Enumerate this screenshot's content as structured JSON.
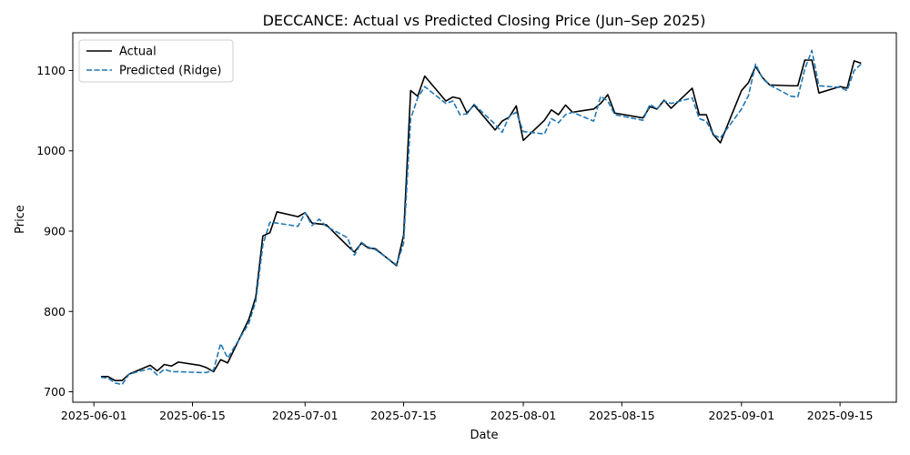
{
  "chart_data": {
    "type": "line",
    "title": "DECCANCE: Actual vs Predicted Closing Price (Jun–Sep 2025)",
    "xlabel": "Date",
    "ylabel": "Price",
    "x_ticks": [
      "2025-06-01",
      "2025-06-15",
      "2025-07-01",
      "2025-07-15",
      "2025-08-01",
      "2025-08-15",
      "2025-09-01",
      "2025-09-15"
    ],
    "y_ticks": [
      700,
      800,
      900,
      1000,
      1100
    ],
    "xlim": [
      "2025-05-29",
      "2025-09-23"
    ],
    "ylim": [
      687,
      1147
    ],
    "grid": false,
    "legend": "upper-left",
    "series": [
      {
        "name": "Actual",
        "color": "#000000",
        "style": "solid",
        "points": [
          [
            "2025-06-02",
            719
          ],
          [
            "2025-06-03",
            719
          ],
          [
            "2025-06-04",
            714
          ],
          [
            "2025-06-05",
            714
          ],
          [
            "2025-06-06",
            722
          ],
          [
            "2025-06-09",
            733
          ],
          [
            "2025-06-10",
            726
          ],
          [
            "2025-06-11",
            734
          ],
          [
            "2025-06-12",
            732
          ],
          [
            "2025-06-13",
            737
          ],
          [
            "2025-06-16",
            733
          ],
          [
            "2025-06-17",
            730
          ],
          [
            "2025-06-18",
            725
          ],
          [
            "2025-06-19",
            740
          ],
          [
            "2025-06-20",
            736
          ],
          [
            "2025-06-23",
            790
          ],
          [
            "2025-06-24",
            818
          ],
          [
            "2025-06-25",
            894
          ],
          [
            "2025-06-26",
            898
          ],
          [
            "2025-06-27",
            924
          ],
          [
            "2025-06-30",
            918
          ],
          [
            "2025-07-01",
            923
          ],
          [
            "2025-07-02",
            910
          ],
          [
            "2025-07-03",
            909
          ],
          [
            "2025-07-04",
            908
          ],
          [
            "2025-07-07",
            882
          ],
          [
            "2025-07-08",
            874
          ],
          [
            "2025-07-09",
            885
          ],
          [
            "2025-07-10",
            879
          ],
          [
            "2025-07-11",
            878
          ],
          [
            "2025-07-14",
            857
          ],
          [
            "2025-07-15",
            895
          ],
          [
            "2025-07-16",
            1075
          ],
          [
            "2025-07-17",
            1068
          ],
          [
            "2025-07-18",
            1093
          ],
          [
            "2025-07-21",
            1062
          ],
          [
            "2025-07-22",
            1067
          ],
          [
            "2025-07-23",
            1065
          ],
          [
            "2025-07-24",
            1047
          ],
          [
            "2025-07-25",
            1057
          ],
          [
            "2025-07-28",
            1026
          ],
          [
            "2025-07-29",
            1037
          ],
          [
            "2025-07-30",
            1042
          ],
          [
            "2025-07-31",
            1056
          ],
          [
            "2025-08-01",
            1013
          ],
          [
            "2025-08-04",
            1038
          ],
          [
            "2025-08-05",
            1051
          ],
          [
            "2025-08-06",
            1045
          ],
          [
            "2025-08-07",
            1057
          ],
          [
            "2025-08-08",
            1048
          ],
          [
            "2025-08-11",
            1052
          ],
          [
            "2025-08-12",
            1059
          ],
          [
            "2025-08-13",
            1070
          ],
          [
            "2025-08-14",
            1047
          ],
          [
            "2025-08-18",
            1041
          ],
          [
            "2025-08-19",
            1055
          ],
          [
            "2025-08-20",
            1052
          ],
          [
            "2025-08-21",
            1063
          ],
          [
            "2025-08-22",
            1053
          ],
          [
            "2025-08-25",
            1078
          ],
          [
            "2025-08-26",
            1045
          ],
          [
            "2025-08-27",
            1045
          ],
          [
            "2025-08-28",
            1020
          ],
          [
            "2025-08-29",
            1010
          ],
          [
            "2025-09-01",
            1075
          ],
          [
            "2025-09-02",
            1085
          ],
          [
            "2025-09-03",
            1105
          ],
          [
            "2025-09-04",
            1091
          ],
          [
            "2025-09-05",
            1082
          ],
          [
            "2025-09-08",
            1081
          ],
          [
            "2025-09-09",
            1081
          ],
          [
            "2025-09-10",
            1113
          ],
          [
            "2025-09-11",
            1113
          ],
          [
            "2025-09-12",
            1072
          ],
          [
            "2025-09-15",
            1080
          ],
          [
            "2025-09-16",
            1078
          ],
          [
            "2025-09-17",
            1112
          ],
          [
            "2025-09-18",
            1109
          ]
        ]
      },
      {
        "name": "Predicted (Ridge)",
        "color": "#1f77b4",
        "style": "dashed",
        "points": [
          [
            "2025-06-02",
            718
          ],
          [
            "2025-06-03",
            717
          ],
          [
            "2025-06-04",
            711
          ],
          [
            "2025-06-05",
            709
          ],
          [
            "2025-06-06",
            722
          ],
          [
            "2025-06-09",
            729
          ],
          [
            "2025-06-10",
            721
          ],
          [
            "2025-06-11",
            728
          ],
          [
            "2025-06-12",
            725
          ],
          [
            "2025-06-13",
            725
          ],
          [
            "2025-06-16",
            724
          ],
          [
            "2025-06-17",
            724
          ],
          [
            "2025-06-18",
            727
          ],
          [
            "2025-06-19",
            760
          ],
          [
            "2025-06-20",
            742
          ],
          [
            "2025-06-23",
            785
          ],
          [
            "2025-06-24",
            813
          ],
          [
            "2025-06-25",
            883
          ],
          [
            "2025-06-26",
            911
          ],
          [
            "2025-06-27",
            910
          ],
          [
            "2025-06-30",
            906
          ],
          [
            "2025-07-01",
            923
          ],
          [
            "2025-07-02",
            907
          ],
          [
            "2025-07-03",
            915
          ],
          [
            "2025-07-04",
            906
          ],
          [
            "2025-07-07",
            892
          ],
          [
            "2025-07-08",
            870
          ],
          [
            "2025-07-09",
            886
          ],
          [
            "2025-07-10",
            880
          ],
          [
            "2025-07-11",
            877
          ],
          [
            "2025-07-14",
            858
          ],
          [
            "2025-07-15",
            885
          ],
          [
            "2025-07-16",
            1040
          ],
          [
            "2025-07-17",
            1066
          ],
          [
            "2025-07-18",
            1080
          ],
          [
            "2025-07-21",
            1059
          ],
          [
            "2025-07-22",
            1062
          ],
          [
            "2025-07-23",
            1045
          ],
          [
            "2025-07-24",
            1046
          ],
          [
            "2025-07-25",
            1058
          ],
          [
            "2025-07-28",
            1033
          ],
          [
            "2025-07-29",
            1023
          ],
          [
            "2025-07-30",
            1043
          ],
          [
            "2025-07-31",
            1048
          ],
          [
            "2025-08-01",
            1024
          ],
          [
            "2025-08-04",
            1021
          ],
          [
            "2025-08-05",
            1040
          ],
          [
            "2025-08-06",
            1035
          ],
          [
            "2025-08-07",
            1045
          ],
          [
            "2025-08-08",
            1048
          ],
          [
            "2025-08-11",
            1037
          ],
          [
            "2025-08-12",
            1068
          ],
          [
            "2025-08-13",
            1062
          ],
          [
            "2025-08-14",
            1045
          ],
          [
            "2025-08-18",
            1038
          ],
          [
            "2025-08-19",
            1058
          ],
          [
            "2025-08-20",
            1052
          ],
          [
            "2025-08-21",
            1062
          ],
          [
            "2025-08-22",
            1059
          ],
          [
            "2025-08-25",
            1066
          ],
          [
            "2025-08-26",
            1040
          ],
          [
            "2025-08-27",
            1037
          ],
          [
            "2025-08-28",
            1020
          ],
          [
            "2025-08-29",
            1016
          ],
          [
            "2025-09-01",
            1052
          ],
          [
            "2025-09-02",
            1069
          ],
          [
            "2025-09-03",
            1108
          ],
          [
            "2025-09-04",
            1090
          ],
          [
            "2025-09-05",
            1082
          ],
          [
            "2025-09-08",
            1068
          ],
          [
            "2025-09-09",
            1067
          ],
          [
            "2025-09-10",
            1102
          ],
          [
            "2025-09-11",
            1125
          ],
          [
            "2025-09-12",
            1081
          ],
          [
            "2025-09-15",
            1079
          ],
          [
            "2025-09-16",
            1075
          ],
          [
            "2025-09-17",
            1100
          ],
          [
            "2025-09-18",
            1108
          ]
        ]
      }
    ]
  }
}
